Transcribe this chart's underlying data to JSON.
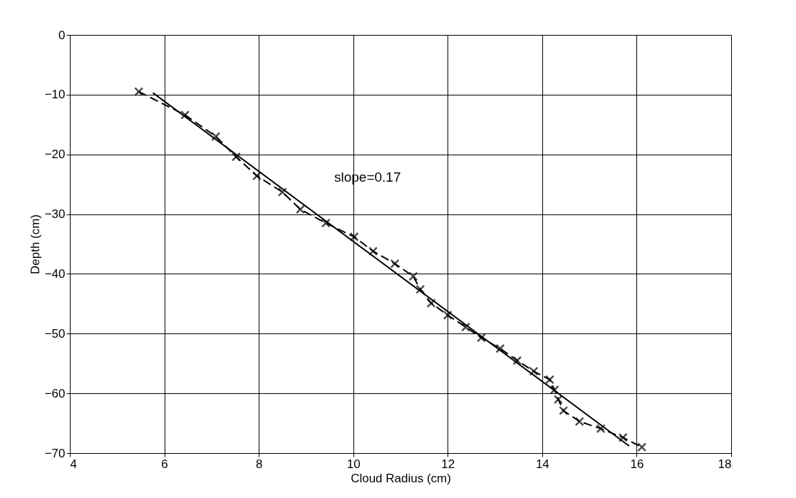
{
  "chart_data": {
    "type": "line",
    "xlabel": "Cloud Radius (cm)",
    "ylabel": "Depth (cm)",
    "xlim": [
      4,
      18
    ],
    "xticks": [
      4,
      6,
      8,
      10,
      12,
      14,
      16,
      18
    ],
    "ylim": [
      -70,
      0
    ],
    "yticks": [
      -70,
      -60,
      -50,
      -40,
      -30,
      -20,
      -10,
      0
    ],
    "grid": true,
    "series": [
      {
        "color": "#000000",
        "marker": "cross",
        "line_style": "dashed",
        "x": [
          5.46,
          6.44,
          7.09,
          7.52,
          7.96,
          8.5,
          8.88,
          9.42,
          10.02,
          10.42,
          10.88,
          11.27,
          11.42,
          11.65,
          12.0,
          12.38,
          12.71,
          13.11,
          13.47,
          13.82,
          14.16,
          14.26,
          14.34,
          14.45,
          14.79,
          15.24,
          15.71,
          16.11
        ],
        "values": [
          -9.5,
          -13.4,
          -17.0,
          -20.4,
          -23.6,
          -26.3,
          -29.2,
          -31.5,
          -33.8,
          -36.2,
          -38.3,
          -40.4,
          -42.6,
          -44.9,
          -46.9,
          -48.9,
          -50.7,
          -52.5,
          -54.5,
          -56.3,
          -57.7,
          -59.4,
          -61.0,
          -62.9,
          -64.7,
          -65.9,
          -67.4,
          -69.0
        ]
      },
      {
        "color": "#000000",
        "marker": "none",
        "line_style": "solid",
        "x": [
          5.76,
          15.84
        ],
        "values": [
          -9.7,
          -68.8
        ]
      }
    ],
    "annotations": [
      "slope=0.17"
    ]
  }
}
